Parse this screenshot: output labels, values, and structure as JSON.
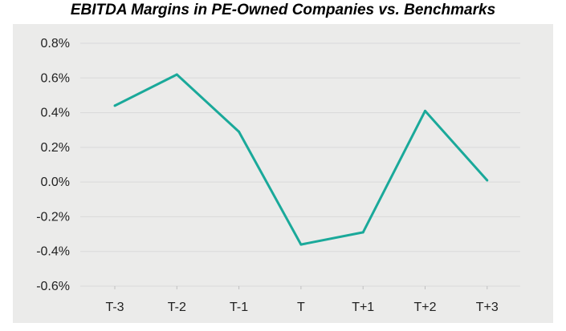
{
  "chart_data": {
    "type": "line",
    "title": "EBITDA Margins in PE-Owned Companies vs. Benchmarks",
    "xlabel": "",
    "ylabel": "",
    "categories": [
      "T-3",
      "T-2",
      "T-1",
      "T",
      "T+1",
      "T+2",
      "T+3"
    ],
    "series": [
      {
        "values": [
          0.44,
          0.62,
          0.29,
          -0.36,
          -0.29,
          0.41,
          0.01
        ]
      }
    ],
    "ylim": [
      -0.6,
      0.8
    ],
    "yticks": [
      "0.8%",
      "0.6%",
      "0.4%",
      "0.2%",
      "0.0%",
      "-0.2%",
      "-0.4%",
      "-0.6%"
    ],
    "ytick_values": [
      0.8,
      0.6,
      0.4,
      0.2,
      0.0,
      -0.2,
      -0.4,
      -0.6
    ],
    "grid": true,
    "legend": "none",
    "colors": {
      "line": "#1aa99a",
      "grid": "#d9d9d9",
      "background": "#ebebea"
    }
  }
}
